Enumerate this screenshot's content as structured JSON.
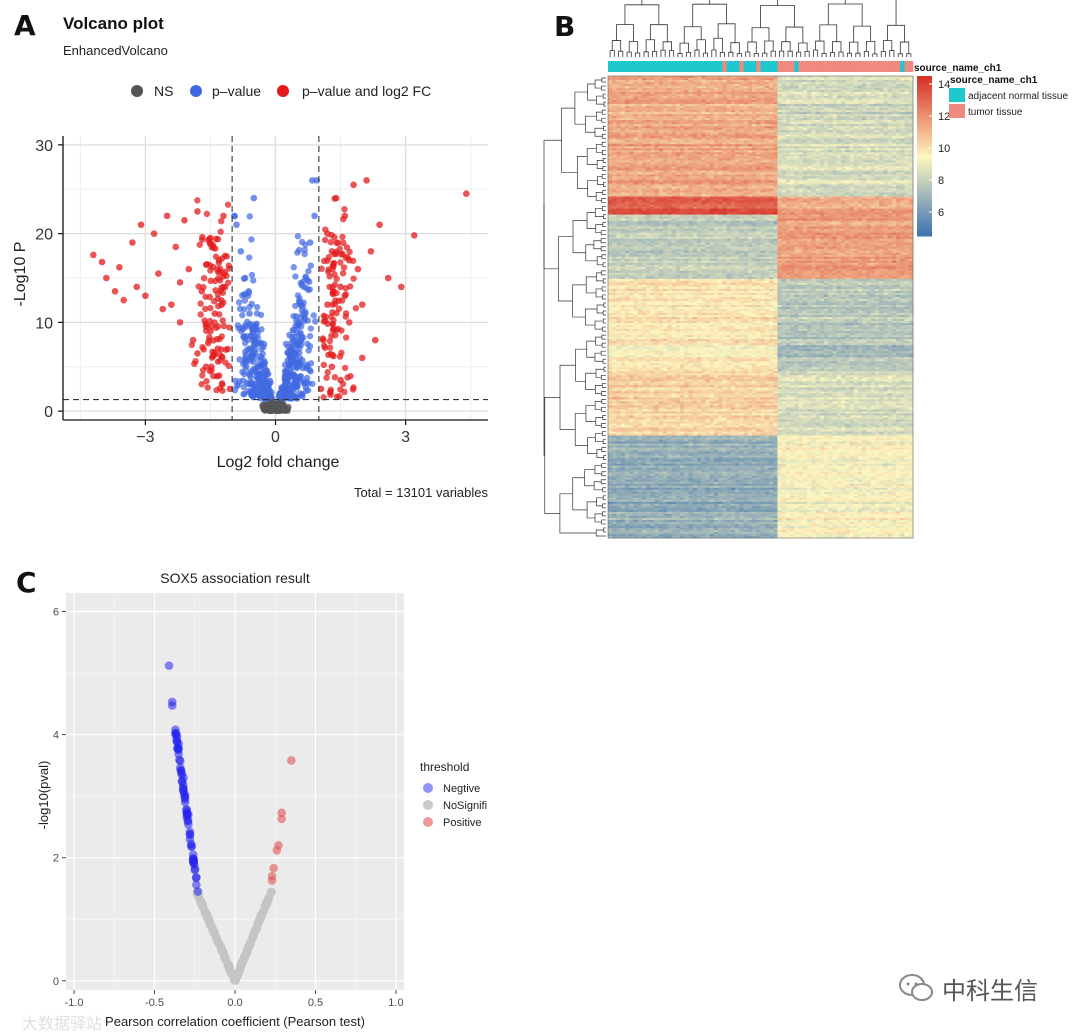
{
  "panels": {
    "a": {
      "letter": "A"
    },
    "b": {
      "letter": "B"
    },
    "c": {
      "letter": "C"
    }
  },
  "watermark": {
    "left_text": "大数据驿站",
    "right_text": "中科生信"
  },
  "chart_data": [
    {
      "id": "volcano",
      "type": "scatter",
      "title": "Volcano plot",
      "subtitle": "EnhancedVolcano",
      "xlabel": "Log2 fold change",
      "ylabel": "-Log10 P",
      "xlim": [
        -4.9,
        4.9
      ],
      "ylim": [
        -1,
        31
      ],
      "xticks": [
        -3,
        0,
        3
      ],
      "yticks": [
        0,
        10,
        20,
        30
      ],
      "legend": [
        "NS",
        "p–value",
        "p–value and log2 FC"
      ],
      "legend_position": "top",
      "colors": {
        "NS": "#555555",
        "pvalue": "#4169e1",
        "both": "#e31a1c"
      },
      "fc_cutoff": [
        -1,
        1
      ],
      "p_cutoff": 1.3,
      "caption": "Total = 13101 variables",
      "grid": true,
      "series": [
        {
          "name": "p–value and log2 FC",
          "points": [
            [
              -4.2,
              17.6
            ],
            [
              -4.0,
              16.8
            ],
            [
              -3.9,
              15.0
            ],
            [
              -3.7,
              13.5
            ],
            [
              -3.6,
              16.2
            ],
            [
              -3.5,
              12.5
            ],
            [
              -3.3,
              19.0
            ],
            [
              -3.2,
              14.0
            ],
            [
              -3.1,
              21.0
            ],
            [
              -3.0,
              13.0
            ],
            [
              -2.8,
              20.0
            ],
            [
              -2.7,
              15.5
            ],
            [
              -2.5,
              22.0
            ],
            [
              -2.4,
              12.0
            ],
            [
              -2.3,
              18.5
            ],
            [
              -2.2,
              10.0
            ],
            [
              -2.1,
              21.5
            ],
            [
              -2.0,
              16.0
            ],
            [
              -1.9,
              8.0
            ],
            [
              -1.8,
              22.5
            ],
            [
              -1.7,
              13.5
            ],
            [
              -1.6,
              5.0
            ],
            [
              -1.5,
              19.5
            ],
            [
              -1.4,
              11.0
            ],
            [
              -1.3,
              4.0
            ],
            [
              -1.2,
              22.0
            ],
            [
              -1.1,
              7.0
            ],
            [
              -1.05,
              2.5
            ],
            [
              -1.5,
              9.0
            ],
            [
              -1.8,
              6.5
            ],
            [
              -2.2,
              14.5
            ],
            [
              -2.6,
              11.5
            ],
            [
              -1.3,
              17.0
            ],
            [
              -1.2,
              14.0
            ],
            [
              -1.6,
              16.5
            ],
            [
              1.05,
              2.5
            ],
            [
              1.1,
              8.0
            ],
            [
              1.2,
              20.0
            ],
            [
              1.3,
              5.0
            ],
            [
              1.4,
              24.0
            ],
            [
              1.5,
              14.0
            ],
            [
              1.6,
              22.0
            ],
            [
              1.7,
              10.0
            ],
            [
              1.8,
              25.5
            ],
            [
              1.9,
              16.0
            ],
            [
              2.0,
              12.0
            ],
            [
              2.1,
              26.0
            ],
            [
              2.2,
              18.0
            ],
            [
              2.3,
              8.0
            ],
            [
              2.4,
              21.0
            ],
            [
              2.6,
              15.0
            ],
            [
              2.9,
              14.0
            ],
            [
              3.2,
              19.8
            ],
            [
              4.4,
              24.5
            ],
            [
              1.2,
              12.0
            ],
            [
              1.5,
              3.5
            ],
            [
              1.3,
              18.0
            ],
            [
              2.0,
              6.0
            ],
            [
              1.7,
              17.0
            ],
            [
              1.6,
              13.0
            ]
          ]
        },
        {
          "name": "p–value",
          "points": [
            [
              -0.3,
              2
            ],
            [
              -0.4,
              5
            ],
            [
              -0.5,
              8
            ],
            [
              -0.6,
              11
            ],
            [
              -0.7,
              15
            ],
            [
              -0.8,
              18
            ],
            [
              -0.9,
              21
            ],
            [
              -0.95,
              22
            ],
            [
              0.3,
              2
            ],
            [
              0.4,
              5
            ],
            [
              0.5,
              8
            ],
            [
              0.6,
              12
            ],
            [
              0.7,
              15
            ],
            [
              0.8,
              19
            ],
            [
              0.9,
              22
            ],
            [
              0.95,
              26
            ],
            [
              -0.2,
              1.5
            ],
            [
              0.2,
              1.5
            ],
            [
              -0.5,
              24
            ],
            [
              0.85,
              26
            ]
          ]
        },
        {
          "name": "NS",
          "points": [
            [
              -0.2,
              0.3
            ],
            [
              0,
              0.8
            ],
            [
              0.2,
              0.3
            ],
            [
              -0.1,
              1.0
            ],
            [
              0.1,
              1.0
            ]
          ]
        }
      ]
    },
    {
      "id": "heatmap",
      "type": "heatmap",
      "annotation_title": "source_name_ch1",
      "annotation_legend_title": "source_name_ch1",
      "groups": [
        {
          "name": "adjacent normal tissue",
          "color": "#1ec8cc"
        },
        {
          "name": "tumor tissue",
          "color": "#f08a80"
        }
      ],
      "color_scale": {
        "ticks": [
          6,
          8,
          10,
          12,
          14
        ],
        "range": [
          4.5,
          14.5
        ],
        "low": "#3a6fb0",
        "mid": "#fdf7c0",
        "high": "#d73027"
      },
      "row_blocks": [
        {
          "rows": 0.26,
          "normal": 11.5,
          "tumor": 8.5
        },
        {
          "rows": 0.04,
          "normal": 13.5,
          "tumor": 11.5
        },
        {
          "rows": 0.14,
          "normal": 8.0,
          "tumor": 11.8
        },
        {
          "rows": 0.2,
          "normal": 9.8,
          "tumor": 7.6
        },
        {
          "rows": 0.14,
          "normal": 10.5,
          "tumor": 8.6
        },
        {
          "rows": 0.22,
          "normal": 6.8,
          "tumor": 9.4
        }
      ]
    },
    {
      "id": "sox5",
      "type": "scatter",
      "title": "SOX5 association result",
      "xlabel": "Pearson correlation coefficient (Pearson test)",
      "ylabel": "-log10(pval)",
      "xlim": [
        -1.05,
        1.05
      ],
      "ylim": [
        -0.15,
        6.3
      ],
      "xticks": [
        -1.0,
        -0.5,
        0.0,
        0.5,
        1.0
      ],
      "yticks": [
        0,
        2,
        4,
        6
      ],
      "legend_title": "threshold",
      "legend": [
        "Negtive",
        "NoSignifi",
        "Positive"
      ],
      "legend_position": "right",
      "colors": {
        "Negtive": "#2525ee",
        "NoSignifi": "#c4c4c4",
        "Positive": "#e05555"
      },
      "grid": true,
      "series": [
        {
          "name": "Negtive",
          "points": [
            [
              -0.41,
              5.12
            ],
            [
              -0.39,
              4.53
            ],
            [
              -0.39,
              4.47
            ],
            [
              -0.37,
              4.08
            ],
            [
              -0.36,
              3.98
            ],
            [
              -0.36,
              3.88
            ],
            [
              -0.35,
              3.78
            ],
            [
              -0.35,
              3.68
            ],
            [
              -0.34,
              3.57
            ],
            [
              -0.34,
              3.46
            ],
            [
              -0.33,
              3.35
            ],
            [
              -0.33,
              3.24
            ],
            [
              -0.32,
              3.12
            ],
            [
              -0.31,
              3.01
            ],
            [
              -0.31,
              2.9
            ],
            [
              -0.3,
              2.78
            ],
            [
              -0.3,
              2.66
            ],
            [
              -0.29,
              2.54
            ],
            [
              -0.28,
              2.42
            ],
            [
              -0.28,
              2.3
            ],
            [
              -0.27,
              2.18
            ],
            [
              -0.26,
              2.05
            ],
            [
              -0.26,
              1.93
            ],
            [
              -0.25,
              1.8
            ],
            [
              -0.24,
              1.68
            ],
            [
              -0.24,
              1.56
            ],
            [
              -0.23,
              1.45
            ],
            [
              -0.35,
              3.85
            ],
            [
              -0.32,
              3.3
            ],
            [
              -0.29,
              2.7
            ]
          ]
        },
        {
          "name": "Positive",
          "points": [
            [
              0.35,
              3.58
            ],
            [
              0.29,
              2.73
            ],
            [
              0.29,
              2.63
            ],
            [
              0.27,
              2.2
            ],
            [
              0.26,
              2.12
            ],
            [
              0.24,
              1.83
            ],
            [
              0.23,
              1.7
            ],
            [
              0.23,
              1.63
            ]
          ]
        }
      ]
    }
  ]
}
